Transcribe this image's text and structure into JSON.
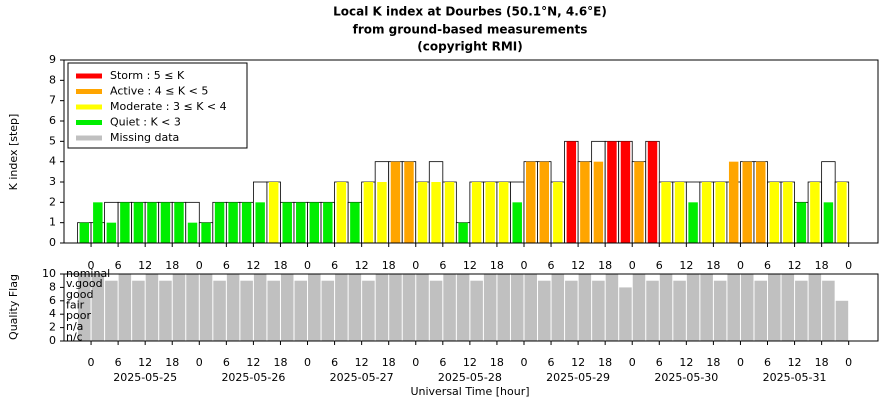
{
  "chart_data": {
    "type": "bar",
    "title": [
      "Local K index at Dourbes (50.1°N, 4.6°E)",
      "from ground-based measurements",
      "(copyright RMI)"
    ],
    "ylabel": "K index [step]",
    "y2label": "Quality Flag",
    "xlabel": "Universal Time [hour]",
    "xlim": [
      -6,
      174.5
    ],
    "ylim": [
      0,
      9
    ],
    "yticks": [
      0,
      1,
      2,
      3,
      4,
      5,
      6,
      7,
      8,
      9
    ],
    "qlim": [
      0,
      10
    ],
    "qticks": [
      0,
      2,
      4,
      6,
      8,
      10
    ],
    "xticks": [
      0,
      6,
      12,
      18,
      {
        "value": 24,
        "label": "0"
      },
      {
        "value": 30,
        "label": "6"
      },
      {
        "value": 36,
        "label": "12"
      },
      {
        "value": 42,
        "label": "18"
      },
      {
        "value": 48,
        "label": "0"
      },
      {
        "value": 54,
        "label": "6"
      },
      {
        "value": 60,
        "label": "12"
      },
      {
        "value": 66,
        "label": "18"
      },
      {
        "value": 72,
        "label": "0"
      },
      {
        "value": 78,
        "label": "6"
      },
      {
        "value": 84,
        "label": "12"
      },
      {
        "value": 90,
        "label": "18"
      },
      {
        "value": 96,
        "label": "0"
      },
      {
        "value": 102,
        "label": "6"
      },
      {
        "value": 108,
        "label": "12"
      },
      {
        "value": 114,
        "label": "18"
      },
      {
        "value": 120,
        "label": "0"
      },
      {
        "value": 126,
        "label": "6"
      },
      {
        "value": 132,
        "label": "12"
      },
      {
        "value": 138,
        "label": "18"
      },
      {
        "value": 144,
        "label": "0"
      },
      {
        "value": 150,
        "label": "6"
      },
      {
        "value": 156,
        "label": "12"
      },
      {
        "value": 162,
        "label": "18"
      },
      {
        "value": 168,
        "label": "0"
      }
    ],
    "dates": [
      {
        "value": 12,
        "label": "2025-05-25"
      },
      {
        "value": 36,
        "label": "2025-05-26"
      },
      {
        "value": 60,
        "label": "2025-05-27"
      },
      {
        "value": 84,
        "label": "2025-05-28"
      },
      {
        "value": 108,
        "label": "2025-05-29"
      },
      {
        "value": 132,
        "label": "2025-05-30"
      },
      {
        "value": 156,
        "label": "2025-05-31"
      }
    ],
    "quality_levels": [
      {
        "value": 10,
        "label": "nominal"
      },
      {
        "value": 8.5,
        "label": "v.good"
      },
      {
        "value": 6.9,
        "label": "good"
      },
      {
        "value": 5.3,
        "label": "fair"
      },
      {
        "value": 3.7,
        "label": "poor"
      },
      {
        "value": 2.1,
        "label": "n/a"
      },
      {
        "value": 0.5,
        "label": "n/c"
      }
    ],
    "legend": [
      {
        "label": "Storm : 5 ≤ K",
        "color": "#ff0000",
        "min": 5
      },
      {
        "label": "Active : 4 ≤ K < 5",
        "color": "#ffa500",
        "min": 4
      },
      {
        "label": "Moderate : 3 ≤ K < 4",
        "color": "#ffff00",
        "min": 3
      },
      {
        "label": "Quiet : K < 3",
        "color": "#00ee00",
        "min": 0
      },
      {
        "label": "Missing data",
        "color": "#c0c0c0"
      }
    ],
    "x": [
      -3,
      0,
      3,
      6,
      9,
      12,
      15,
      18,
      21,
      24,
      27,
      30,
      33,
      36,
      39,
      42,
      45,
      48,
      51,
      54,
      57,
      60,
      63,
      66,
      69,
      72,
      75,
      78,
      81,
      84,
      87,
      90,
      93,
      96,
      99,
      102,
      105,
      108,
      111,
      114,
      117,
      120,
      123,
      126,
      129,
      132,
      135,
      138,
      141,
      144,
      147,
      150,
      153,
      156,
      159,
      162,
      165
    ],
    "values": [
      1,
      2,
      1,
      2,
      2,
      2,
      2,
      2,
      1,
      1,
      2,
      2,
      2,
      2,
      3,
      2,
      2,
      2,
      2,
      3,
      2,
      3,
      3,
      4,
      4,
      3,
      3,
      3,
      1,
      3,
      3,
      3,
      2,
      4,
      4,
      3,
      5,
      4,
      4,
      5,
      5,
      4,
      5,
      3,
      3,
      2,
      3,
      3,
      4,
      4,
      4,
      3,
      3,
      2,
      3,
      2,
      3
    ],
    "outline": [
      1,
      1,
      2,
      2,
      2,
      2,
      2,
      2,
      2,
      1,
      2,
      2,
      2,
      3,
      3,
      2,
      2,
      2,
      2,
      3,
      2,
      3,
      4,
      4,
      4,
      3,
      4,
      3,
      1,
      3,
      3,
      3,
      3,
      4,
      4,
      3,
      5,
      4,
      5,
      5,
      5,
      4,
      5,
      3,
      3,
      3,
      3,
      3,
      3,
      4,
      4,
      3,
      3,
      2,
      3,
      4,
      3
    ],
    "quality": [
      10,
      10,
      9,
      10,
      9,
      10,
      9,
      10,
      10,
      10,
      9,
      10,
      9,
      10,
      9,
      10,
      9,
      10,
      9,
      10,
      10,
      9,
      10,
      10,
      10,
      10,
      9,
      10,
      10,
      9,
      10,
      10,
      10,
      10,
      9,
      10,
      9,
      10,
      9,
      10,
      8,
      10,
      9,
      10,
      9,
      10,
      10,
      9,
      10,
      10,
      9,
      10,
      10,
      9,
      10,
      9,
      6
    ]
  }
}
